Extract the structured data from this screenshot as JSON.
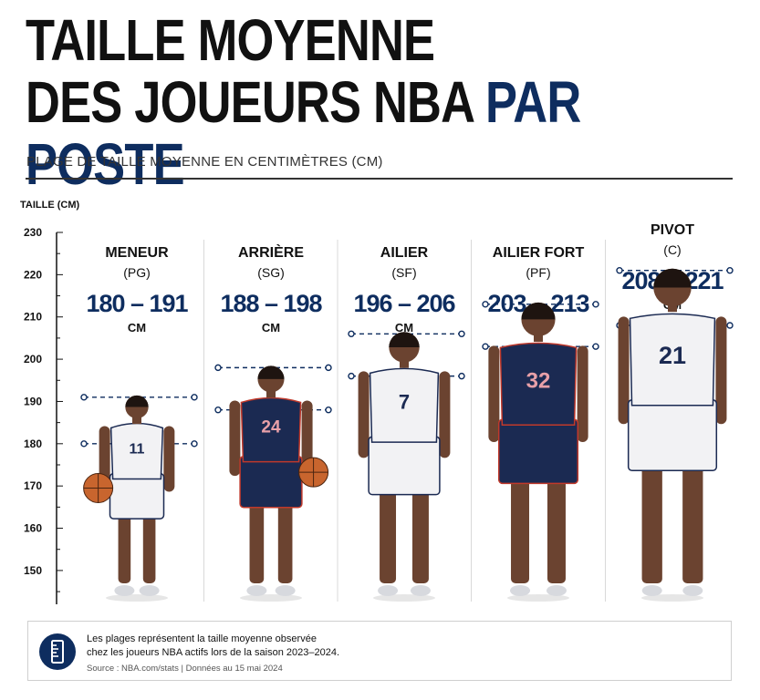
{
  "title_line1": "TAILLE MOYENNE",
  "title_line2_a": "DES JOUEURS NBA",
  "title_line2_b": "PAR POSTE",
  "subtitle": "PLAGE DE TAILLE MOYENNE EN CENTIMÈTRES (CM)",
  "note": {
    "line1": "Les plages représentent la taille moyenne observée",
    "line2": "chez les joueurs NBA actifs lors de la saison 2023–2024.",
    "source": "Source : NBA.com/stats | Données au 15 mai 2024",
    "icon": "ruler-icon"
  },
  "chart_data": {
    "type": "range",
    "ylabel": "TAILLE (CM)",
    "ylim": [
      142,
      230
    ],
    "yticks": [
      150,
      160,
      170,
      180,
      190,
      200,
      210,
      220,
      230
    ],
    "grid": false,
    "unit": "CM",
    "accent_color": "#0e2d5f",
    "categories": [
      {
        "name": "MENEUR",
        "abbr": "(PG)",
        "min": 180,
        "max": 191,
        "jersey": "11",
        "kit": "white",
        "ball": true
      },
      {
        "name": "ARRIÈRE",
        "abbr": "(SG)",
        "min": 188,
        "max": 198,
        "jersey": "24",
        "kit": "navy",
        "ball": true
      },
      {
        "name": "AILIER",
        "abbr": "(SF)",
        "min": 196,
        "max": 206,
        "jersey": "7",
        "kit": "white",
        "ball": false
      },
      {
        "name": "AILIER FORT",
        "abbr": "(PF)",
        "min": 203,
        "max": 213,
        "jersey": "32",
        "kit": "navy",
        "ball": false
      },
      {
        "name": "PIVOT",
        "abbr": "(C)",
        "min": 208,
        "max": 221,
        "jersey": "21",
        "kit": "white",
        "ball": false
      }
    ]
  }
}
